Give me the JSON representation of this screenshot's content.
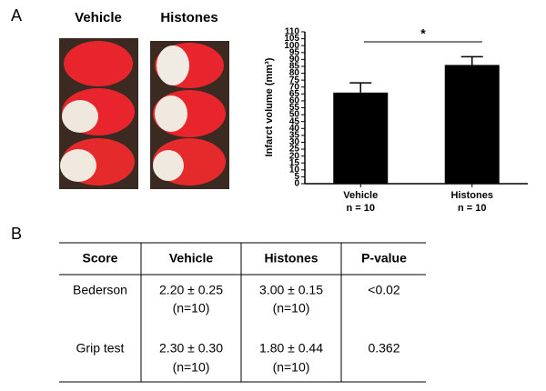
{
  "panel_labels": [
    "A",
    "B"
  ],
  "images": {
    "labels": [
      "Vehicle",
      "Histones"
    ]
  },
  "chart_data": {
    "type": "bar",
    "y_label": "Infarct volume (mm³)",
    "categories": [
      "Vehicle",
      "Histones"
    ],
    "sample_sizes": [
      "n = 10",
      "n = 10"
    ],
    "series": [
      {
        "color": "#000000",
        "values": [
          66,
          86
        ],
        "errors": [
          7,
          6
        ]
      }
    ],
    "ylim": [
      0,
      110
    ],
    "yticks": [
      0,
      5,
      10,
      15,
      20,
      25,
      30,
      35,
      40,
      45,
      50,
      55,
      60,
      65,
      70,
      75,
      80,
      85,
      90,
      95,
      100,
      105,
      110
    ],
    "annotation": "*"
  },
  "table": {
    "header": [
      "Score",
      "Vehicle",
      "Histones",
      "P-value"
    ],
    "rows": [
      {
        "score": "Bederson",
        "vehicle": [
          "2.20 ±  0.25",
          "(n=10)"
        ],
        "histones": [
          "3.00 ± 0.15",
          "(n=10)"
        ],
        "p_value": "<0.02"
      },
      {
        "score": "Grip test",
        "vehicle": [
          "2.30 ±  0.30",
          "(n=10)"
        ],
        "histones": [
          "1.80 ± 0.44",
          "(n=10)"
        ],
        "p_value": "0.362"
      }
    ]
  }
}
